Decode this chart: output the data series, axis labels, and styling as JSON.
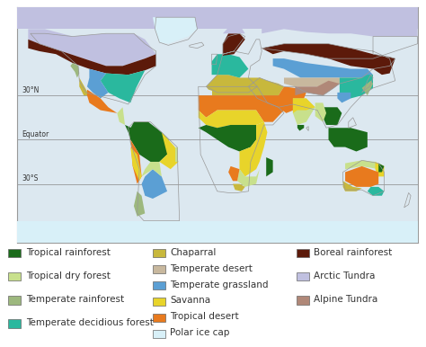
{
  "legend_items": [
    {
      "label": "Tropical rainforest",
      "color": "#1a6b1a"
    },
    {
      "label": "Tropical dry forest",
      "color": "#c8e08c"
    },
    {
      "label": "Temperate rainforest",
      "color": "#9db87e"
    },
    {
      "label": "Temperate decidious forest",
      "color": "#2ab89e"
    },
    {
      "label": "Chaparral",
      "color": "#c8b83c"
    },
    {
      "label": "Temperate desert",
      "color": "#c8b89e"
    },
    {
      "label": "Temperate grassland",
      "color": "#5b9fd4"
    },
    {
      "label": "Savanna",
      "color": "#e8d42a"
    },
    {
      "label": "Tropical desert",
      "color": "#e87a1e"
    },
    {
      "label": "Polar ice cap",
      "color": "#d8f0f8"
    },
    {
      "label": "Boreal rainforest",
      "color": "#5c1a0a"
    },
    {
      "label": "Arctic Tundra",
      "color": "#c0c0e0"
    },
    {
      "label": "Alpine Tundra",
      "color": "#b08878"
    }
  ],
  "legend_col1": [
    0,
    1,
    2,
    3
  ],
  "legend_col2": [
    4,
    5,
    6,
    7,
    8,
    9
  ],
  "legend_col3": [
    10,
    11,
    12
  ],
  "text_color": "#333333",
  "legend_fontsize": 7.5,
  "line_color": "#888888",
  "border_color": "#999999",
  "map_outline_color": "#aaaaaa",
  "map_bg": "#dce8f0",
  "lat_labels": [
    "30°N",
    "Equator",
    "30°S"
  ]
}
